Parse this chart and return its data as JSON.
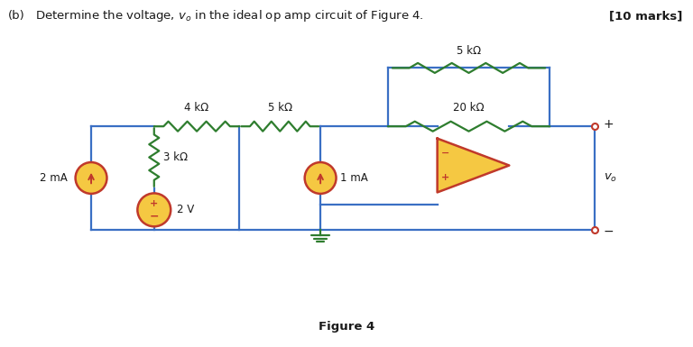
{
  "bg_color": "#ffffff",
  "wire_color": "#3a6fc4",
  "resistor_color": "#2e7d2e",
  "source_color": "#c0392b",
  "text_color": "#1a1a1a",
  "opamp_fill": "#f5c842",
  "opamp_edge": "#c0392b",
  "ground_color": "#2e7d2e",
  "terminal_color": "#c0392b",
  "title": "(b)     Determine the voltage, $v_o$ in the ideal op amp circuit of Figure 4.",
  "marks": "[10 marks]",
  "fig_label": "Figure 4",
  "source_fill": "#f5c842",
  "lw_wire": 1.6,
  "lw_res": 1.6,
  "lw_src": 1.8
}
